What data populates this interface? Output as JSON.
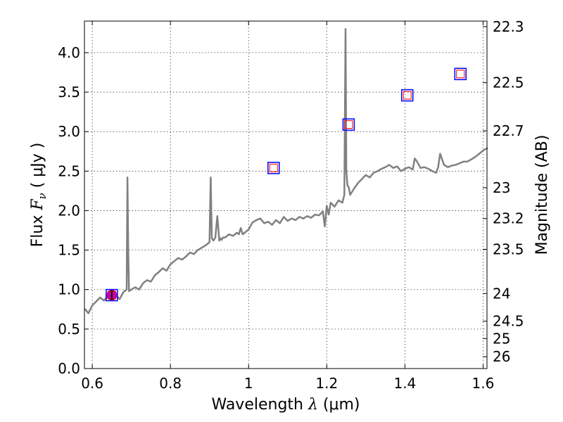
{
  "chart_data": {
    "type": "line",
    "xlabel": "Wavelength  λ (μm)",
    "xlabel_parts": {
      "prefix": "Wavelength  ",
      "symbol": "λ",
      "suffix": " (μm)"
    },
    "ylabel": "Flux  Fν  ( μJy )",
    "ylabel_parts": {
      "prefix": "Flux  ",
      "symbol": "F",
      "sub": "ν",
      "suffix": "  ( μJy )"
    },
    "y2label": "Magnitude (AB)",
    "xlim": [
      0.58,
      1.61
    ],
    "ylim": [
      0.0,
      4.4
    ],
    "grid": true,
    "x_ticks": [
      {
        "value": 0.6,
        "label": "0.6"
      },
      {
        "value": 0.8,
        "label": "0.8"
      },
      {
        "value": 1.0,
        "label": "1"
      },
      {
        "value": 1.2,
        "label": "1.2"
      },
      {
        "value": 1.4,
        "label": "1.4"
      },
      {
        "value": 1.6,
        "label": "1.6"
      }
    ],
    "y_ticks": [
      {
        "value": 0.0,
        "label": "0.0"
      },
      {
        "value": 0.5,
        "label": "0.5"
      },
      {
        "value": 1.0,
        "label": "1.0"
      },
      {
        "value": 1.5,
        "label": "1.5"
      },
      {
        "value": 2.0,
        "label": "2.0"
      },
      {
        "value": 2.5,
        "label": "2.5"
      },
      {
        "value": 3.0,
        "label": "3.0"
      },
      {
        "value": 3.5,
        "label": "3.5"
      },
      {
        "value": 4.0,
        "label": "4.0"
      }
    ],
    "y2_ticks": [
      {
        "flux": 4.33,
        "label": "22.3"
      },
      {
        "flux": 3.62,
        "label": "22.5"
      },
      {
        "flux": 3.01,
        "label": "22.7"
      },
      {
        "flux": 2.29,
        "label": "23"
      },
      {
        "flux": 1.9,
        "label": "23.2"
      },
      {
        "flux": 1.51,
        "label": "23.5"
      },
      {
        "flux": 0.95,
        "label": "24"
      },
      {
        "flux": 0.6,
        "label": "24.5"
      },
      {
        "flux": 0.38,
        "label": "25"
      },
      {
        "flux": 0.15,
        "label": "26"
      }
    ],
    "series": [
      {
        "name": "spectrum",
        "color": "#808080",
        "x": [
          0.582,
          0.59,
          0.6,
          0.61,
          0.62,
          0.63,
          0.64,
          0.65,
          0.66,
          0.67,
          0.68,
          0.688,
          0.69,
          0.692,
          0.694,
          0.7,
          0.71,
          0.72,
          0.73,
          0.74,
          0.75,
          0.76,
          0.77,
          0.78,
          0.79,
          0.8,
          0.81,
          0.82,
          0.83,
          0.84,
          0.85,
          0.86,
          0.87,
          0.88,
          0.89,
          0.9,
          0.903,
          0.906,
          0.91,
          0.915,
          0.92,
          0.925,
          0.928,
          0.931,
          0.935,
          0.94,
          0.95,
          0.96,
          0.97,
          0.975,
          0.98,
          0.985,
          0.99,
          1.0,
          1.01,
          1.02,
          1.03,
          1.04,
          1.05,
          1.06,
          1.07,
          1.08,
          1.09,
          1.1,
          1.11,
          1.12,
          1.13,
          1.14,
          1.15,
          1.16,
          1.17,
          1.18,
          1.19,
          1.195,
          1.2,
          1.205,
          1.21,
          1.22,
          1.23,
          1.24,
          1.245,
          1.248,
          1.25,
          1.253,
          1.256,
          1.26,
          1.27,
          1.28,
          1.29,
          1.3,
          1.31,
          1.32,
          1.33,
          1.34,
          1.35,
          1.36,
          1.37,
          1.38,
          1.39,
          1.4,
          1.41,
          1.42,
          1.425,
          1.43,
          1.44,
          1.45,
          1.46,
          1.47,
          1.48,
          1.485,
          1.49,
          1.5,
          1.51,
          1.52,
          1.53,
          1.54,
          1.55,
          1.56,
          1.57,
          1.58,
          1.59,
          1.6,
          1.61
        ],
        "y": [
          0.75,
          0.7,
          0.8,
          0.85,
          0.9,
          0.86,
          0.92,
          0.9,
          0.93,
          0.88,
          0.97,
          1.0,
          2.42,
          1.5,
          0.98,
          1.0,
          1.03,
          1.0,
          1.08,
          1.12,
          1.1,
          1.18,
          1.22,
          1.27,
          1.24,
          1.32,
          1.36,
          1.4,
          1.38,
          1.42,
          1.47,
          1.45,
          1.5,
          1.53,
          1.56,
          1.6,
          2.42,
          1.65,
          1.62,
          1.66,
          1.93,
          1.62,
          1.65,
          1.63,
          1.66,
          1.66,
          1.7,
          1.68,
          1.72,
          1.7,
          1.78,
          1.7,
          1.72,
          1.76,
          1.85,
          1.88,
          1.9,
          1.84,
          1.86,
          1.82,
          1.88,
          1.84,
          1.92,
          1.87,
          1.9,
          1.88,
          1.92,
          1.9,
          1.93,
          1.91,
          1.95,
          1.94,
          1.99,
          1.8,
          2.06,
          1.95,
          2.1,
          2.05,
          2.13,
          2.1,
          2.2,
          4.3,
          2.5,
          2.32,
          2.3,
          2.2,
          2.28,
          2.35,
          2.4,
          2.45,
          2.42,
          2.48,
          2.5,
          2.53,
          2.55,
          2.58,
          2.54,
          2.56,
          2.5,
          2.53,
          2.55,
          2.52,
          2.66,
          2.63,
          2.54,
          2.55,
          2.53,
          2.5,
          2.48,
          2.55,
          2.72,
          2.58,
          2.55,
          2.57,
          2.58,
          2.6,
          2.62,
          2.62,
          2.65,
          2.68,
          2.72,
          2.76,
          2.79
        ]
      }
    ],
    "photometry_points": [
      {
        "x": 0.65,
        "y": 0.93,
        "outer": "blue square",
        "inner": "red square"
      },
      {
        "x": 1.064,
        "y": 2.54,
        "outer": "blue square",
        "inner": "red square"
      },
      {
        "x": 1.256,
        "y": 3.09,
        "outer": "blue square",
        "inner": "red square"
      },
      {
        "x": 1.406,
        "y": 3.46,
        "outer": "blue square",
        "inner": "red square"
      },
      {
        "x": 1.542,
        "y": 3.73,
        "outer": "blue square",
        "inner": "red square"
      }
    ],
    "measured_point": {
      "x": 0.65,
      "y": 0.93,
      "yerr": 0.05,
      "color": "#bf00bf"
    },
    "colors": {
      "spectrum": "#808080",
      "box_outer": "#0000ff",
      "box_inner": "#ff0000",
      "measured": "#bf00bf"
    }
  }
}
